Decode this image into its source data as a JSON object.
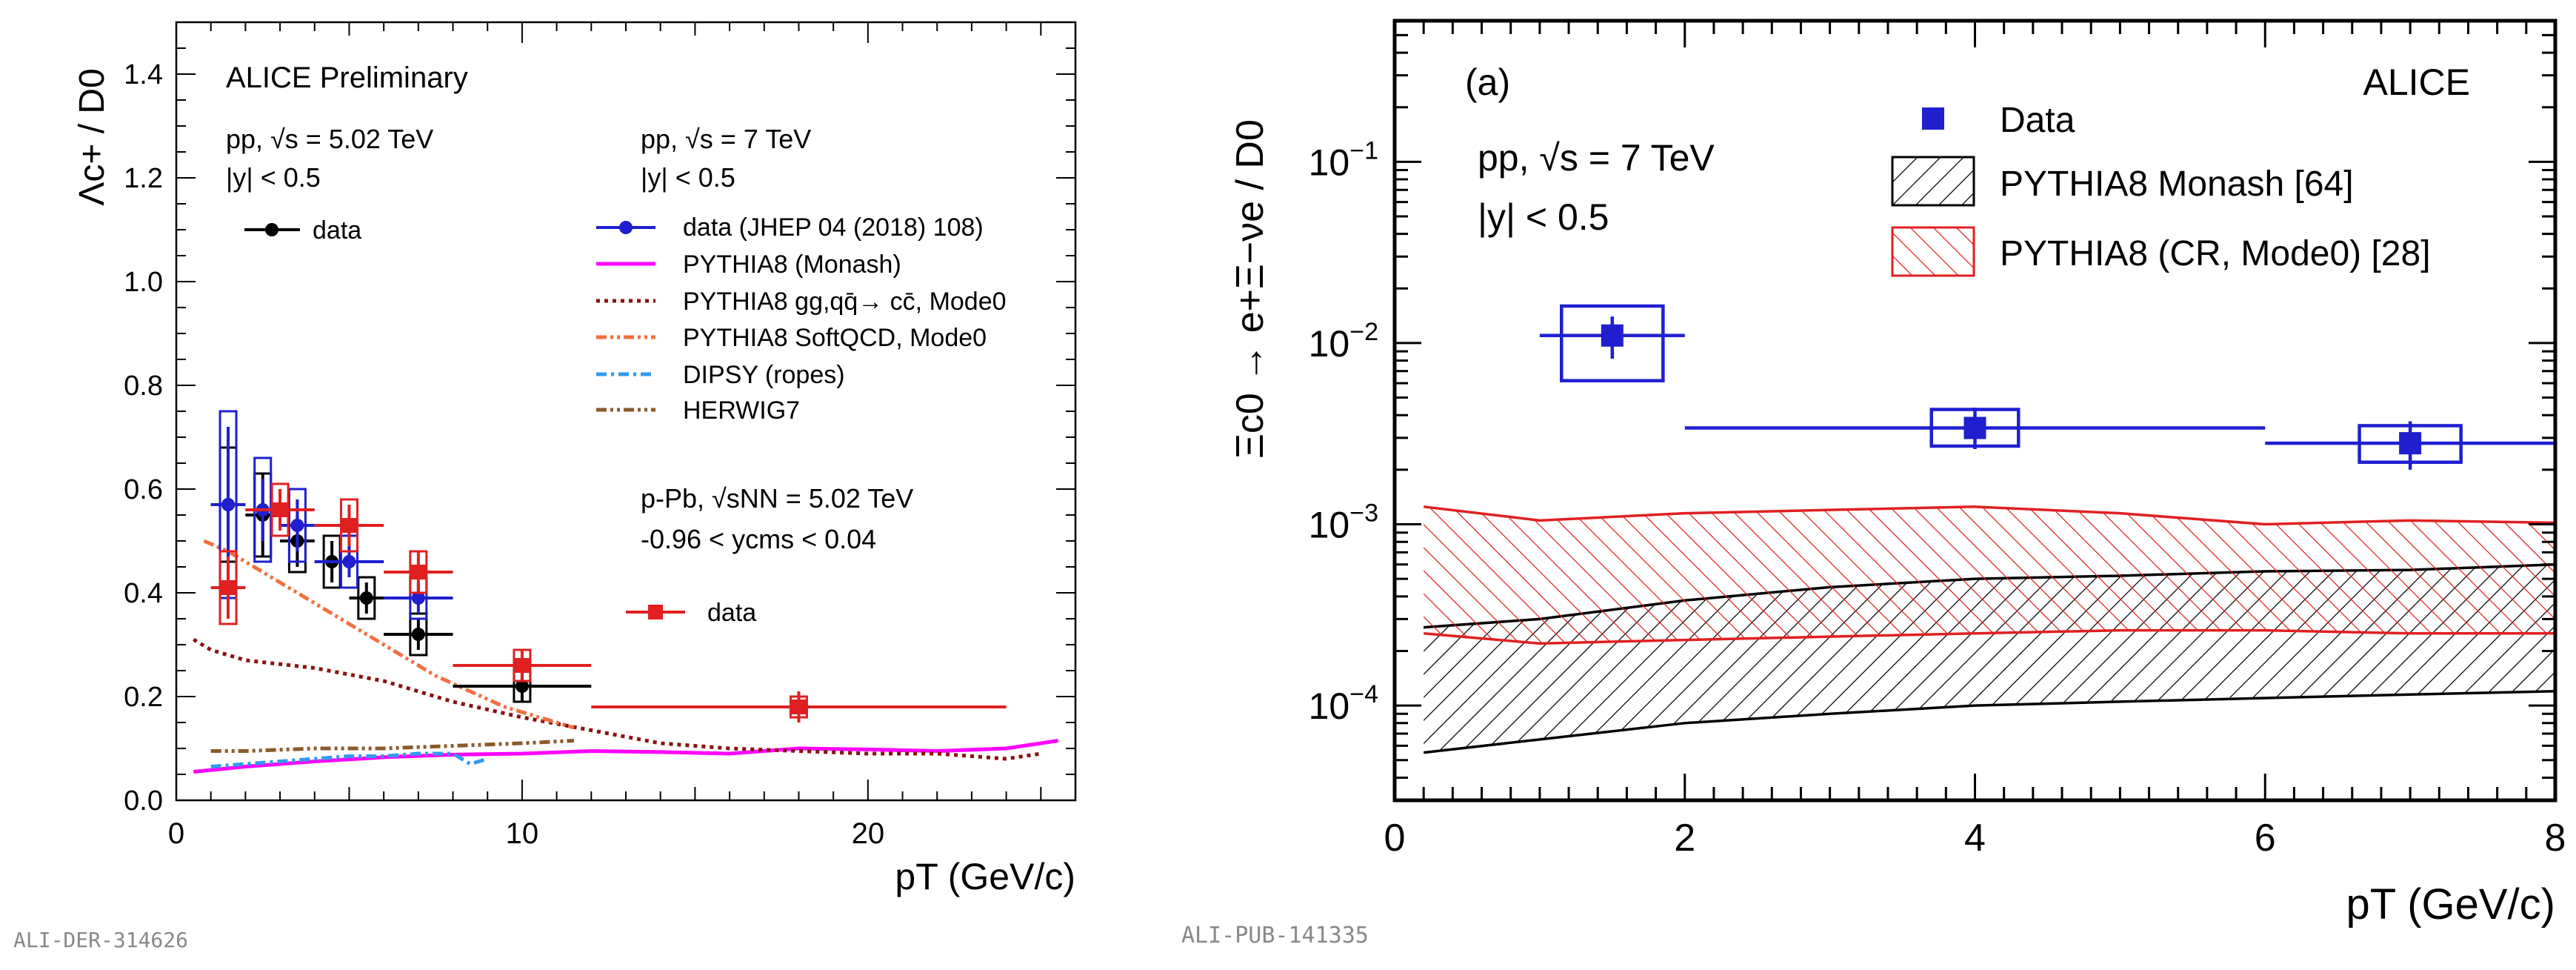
{
  "colors": {
    "black": "#000000",
    "blue": "#1f1fd0",
    "red": "#e02020",
    "magenta": "#ff00ff",
    "darkred": "#8b1010",
    "orange": "#f07040",
    "skyblue": "#3399ee",
    "brown": "#8b5a2b"
  },
  "watermarks": {
    "left": "ALI-DER-314626",
    "right": "ALI-PUB-141335"
  },
  "chart_data": [
    {
      "type": "scatter",
      "title": "ALICE Preliminary",
      "ylabel": "Λc+ / D0",
      "xlabel": "pT (GeV/c)",
      "xlim": [
        0,
        26
      ],
      "ylim": [
        0,
        1.5
      ],
      "xticks": [
        0,
        10,
        20
      ],
      "yticks": [
        "0.0",
        "0.2",
        "0.4",
        "0.6",
        "0.8",
        "1.0",
        "1.2",
        "1.4"
      ],
      "annotations": {
        "pp502": "pp, √s = 5.02 TeV",
        "pp502_y": "|y| < 0.5",
        "pp7": "pp, √s = 7 TeV",
        "pp7_y": "|y| < 0.5",
        "ppb": "p-Pb, √sNN = 5.02 TeV",
        "ppb_y": "-0.96 < ycms < 0.04"
      },
      "legend": {
        "data_black": "data",
        "data_blue": "data (JHEP 04 (2018) 108)",
        "monash": "PYTHIA8 (Monash)",
        "mode0": "PYTHIA8 gg,qq̄→ cc̄, Mode0",
        "softqcd": "PYTHIA8 SoftQCD, Mode0",
        "dipsy": "DIPSY (ropes)",
        "herwig": "HERWIG7",
        "data_red": "data"
      },
      "series": [
        {
          "name": "data pp 5.02 TeV",
          "color": "#000000",
          "x": [
            1.5,
            2.5,
            3.5,
            4.5,
            5.5,
            7,
            10
          ],
          "xerr": [
            0.5,
            0.5,
            0.5,
            0.5,
            0.5,
            1,
            2
          ],
          "y": [
            0.57,
            0.55,
            0.5,
            0.46,
            0.39,
            0.32,
            0.22
          ],
          "stat": [
            0.12,
            0.08,
            0.05,
            0.04,
            0.03,
            0.03,
            0.03
          ],
          "sys": [
            0.11,
            0.08,
            0.06,
            0.05,
            0.04,
            0.04,
            0.03
          ]
        },
        {
          "name": "data pp 7 TeV",
          "color": "#1f1fd0",
          "x": [
            1.5,
            2.5,
            3.5,
            5,
            7
          ],
          "xerr": [
            0.5,
            0.5,
            0.5,
            1,
            1
          ],
          "y": [
            0.57,
            0.56,
            0.53,
            0.46,
            0.39
          ],
          "stat": [
            0.15,
            0.06,
            0.05,
            0.03,
            0.03
          ],
          "sys": [
            0.18,
            0.1,
            0.07,
            0.05,
            0.04
          ]
        },
        {
          "name": "data p-Pb 5.02 TeV",
          "color": "#e02020",
          "x": [
            1.5,
            3,
            5,
            7,
            10,
            18
          ],
          "xerr": [
            0.5,
            1,
            1,
            1,
            2,
            6
          ],
          "y": [
            0.41,
            0.56,
            0.53,
            0.44,
            0.26,
            0.18
          ],
          "stat": [
            0.06,
            0.04,
            0.04,
            0.04,
            0.03,
            0.03
          ],
          "sys": [
            0.07,
            0.05,
            0.05,
            0.04,
            0.03,
            0.02
          ]
        }
      ],
      "curves": [
        {
          "name": "PYTHIA8 (Monash)",
          "color": "#ff00ff",
          "style": "solid",
          "x": [
            0.5,
            2,
            4,
            6,
            8,
            10,
            12,
            14,
            16,
            18,
            20,
            22,
            24,
            25.5
          ],
          "y": [
            0.055,
            0.065,
            0.075,
            0.083,
            0.088,
            0.09,
            0.095,
            0.093,
            0.09,
            0.1,
            0.098,
            0.095,
            0.1,
            0.115
          ]
        },
        {
          "name": "PYTHIA8 Mode0",
          "color": "#8b1010",
          "style": "dotted",
          "x": [
            0.5,
            1,
            2,
            4,
            6,
            8,
            10,
            12,
            14,
            16,
            18,
            20,
            22,
            24,
            25
          ],
          "y": [
            0.31,
            0.29,
            0.27,
            0.255,
            0.23,
            0.19,
            0.16,
            0.135,
            0.11,
            0.1,
            0.095,
            0.09,
            0.09,
            0.08,
            0.09
          ]
        },
        {
          "name": "PYTHIA8 SoftQCD",
          "color": "#f07040",
          "style": "dashdotdot",
          "x": [
            0.8,
            1.5,
            2.5,
            3.5,
            4.5,
            5.5,
            6.5,
            7.5,
            8.5,
            9.5,
            10.5,
            11.5
          ],
          "y": [
            0.5,
            0.48,
            0.44,
            0.4,
            0.36,
            0.32,
            0.28,
            0.24,
            0.21,
            0.18,
            0.16,
            0.14
          ]
        },
        {
          "name": "DIPSY (ropes)",
          "color": "#3399ee",
          "style": "dashdot",
          "x": [
            1,
            2,
            3,
            4,
            5,
            6,
            7,
            8,
            8.5,
            9
          ],
          "y": [
            0.065,
            0.07,
            0.075,
            0.08,
            0.085,
            0.085,
            0.09,
            0.09,
            0.07,
            0.08
          ]
        },
        {
          "name": "HERWIG7",
          "color": "#8b5a2b",
          "style": "dashdotdot",
          "x": [
            1,
            2,
            4,
            6,
            8,
            10,
            11.5
          ],
          "y": [
            0.095,
            0.095,
            0.1,
            0.1,
            0.105,
            0.11,
            0.115
          ]
        }
      ]
    },
    {
      "type": "scatter",
      "panel_label": "(a)",
      "experiment": "ALICE",
      "ylabel": "Ξc0 → e+Ξ−νe / D0",
      "xlabel": "pT (GeV/c)",
      "xlim": [
        0,
        8
      ],
      "ylim": [
        3e-05,
        0.6
      ],
      "yscale": "log",
      "xticks": [
        "0",
        "2",
        "4",
        "6",
        "8"
      ],
      "yticks": [
        {
          "base": "10",
          "exp": "−4",
          "value": 0.0001
        },
        {
          "base": "10",
          "exp": "−3",
          "value": 0.001
        },
        {
          "base": "10",
          "exp": "−2",
          "value": 0.01
        },
        {
          "base": "10",
          "exp": "−1",
          "value": 0.1
        }
      ],
      "annotations": {
        "system": "pp, √s = 7 TeV",
        "rapidity": "|y| < 0.5"
      },
      "legend": {
        "data": "Data",
        "monash": "PYTHIA8 Monash [64]",
        "cr": "PYTHIA8 (CR, Mode0) [28]"
      },
      "data": {
        "x": [
          1.5,
          4,
          7
        ],
        "xlow": [
          1,
          2,
          6
        ],
        "xhigh": [
          2,
          6,
          8
        ],
        "y": [
          0.011,
          0.0034,
          0.0028
        ],
        "stat_low": [
          0.0082,
          0.0026,
          0.002
        ],
        "stat_high": [
          0.014,
          0.0044,
          0.0037
        ],
        "sys_low": [
          0.0062,
          0.0027,
          0.0022
        ],
        "sys_high": [
          0.016,
          0.0043,
          0.0035
        ]
      },
      "bands": [
        {
          "name": "PYTHIA8 Monash [64]",
          "color": "#000000",
          "x": [
            0.2,
            1,
            2,
            3,
            4,
            5,
            6,
            7,
            8
          ],
          "low": [
            5.5e-05,
            6.5e-05,
            8e-05,
            9e-05,
            0.0001,
            0.000105,
            0.00011,
            0.000115,
            0.00012
          ],
          "high": [
            0.00027,
            0.0003,
            0.00038,
            0.00045,
            0.0005,
            0.00052,
            0.00055,
            0.00056,
            0.0006
          ]
        },
        {
          "name": "PYTHIA8 (CR, Mode0) [28]",
          "color": "#e02020",
          "x": [
            0.2,
            1,
            2,
            3,
            4,
            5,
            6,
            7,
            8
          ],
          "low": [
            0.00025,
            0.00022,
            0.00023,
            0.00024,
            0.00025,
            0.00026,
            0.00026,
            0.00025,
            0.00025
          ],
          "high": [
            0.00125,
            0.00105,
            0.00115,
            0.0012,
            0.00125,
            0.00115,
            0.001,
            0.00105,
            0.00102
          ]
        }
      ]
    }
  ]
}
